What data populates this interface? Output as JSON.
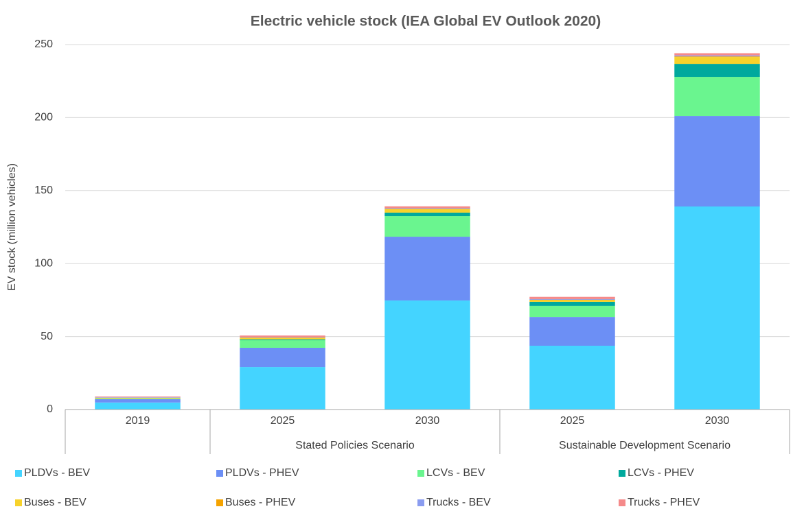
{
  "chart_data": {
    "type": "stacked_bar",
    "title": "Electric vehicle stock (IEA Global EV Outlook 2020)",
    "y_label": "EV stock (million vehicles)",
    "categories": [
      "2019",
      "2025",
      "2030",
      "2025",
      "2030"
    ],
    "category_groups": [
      null,
      "Stated Policies Scenario",
      "Stated Policies Scenario",
      "Sustainable Development Scenario",
      "Sustainable Development Scenario"
    ],
    "ylim": [
      0,
      250
    ],
    "yticks": [
      0,
      50,
      100,
      150,
      200,
      250
    ],
    "grid": true,
    "legend": "bottom",
    "series": [
      {
        "name": "PLDVs - BEV",
        "color": "#44d4ff",
        "values": [
          4.8,
          29.1,
          74.7,
          43.7,
          139.1
        ]
      },
      {
        "name": "PLDVs - PHEV",
        "color": "#6c8ff5",
        "values": [
          2.3,
          13.2,
          43.7,
          19.7,
          62
        ]
      },
      {
        "name": "LCVs - BEV",
        "color": "#6af58f",
        "values": [
          0.4,
          5.2,
          14.1,
          7.6,
          26.8
        ]
      },
      {
        "name": "LCVs - PHEV",
        "color": "#00a99d",
        "values": [
          0.05,
          0.6,
          2.4,
          2.8,
          8.9
        ]
      },
      {
        "name": "Buses - BEV",
        "color": "#f7d22b",
        "values": [
          0.5,
          1.0,
          2.3,
          1.2,
          4.7
        ]
      },
      {
        "name": "Buses - PHEV",
        "color": "#f5a300",
        "values": [
          0.05,
          0.2,
          0.3,
          0.2,
          0.4
        ]
      },
      {
        "name": "Trucks - BEV",
        "color": "#8a9cf0",
        "values": [
          0.3,
          0.3,
          0.5,
          0.5,
          0.7
        ]
      },
      {
        "name": "Trucks - PHEV",
        "color": "#f58a8a",
        "values": [
          0.5,
          1.1,
          1.2,
          1.5,
          1.5
        ]
      }
    ]
  }
}
